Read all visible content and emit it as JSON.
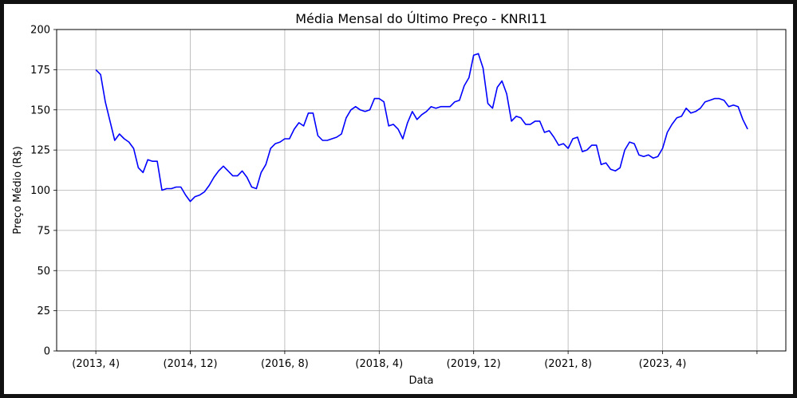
{
  "chart_data": {
    "type": "line",
    "title": "Média Mensal do Último Preço - KNRI11",
    "xlabel": "Data",
    "ylabel": "Preço Médio (R$)",
    "ylim": [
      0,
      200
    ],
    "yticks": [
      0,
      25,
      50,
      75,
      100,
      125,
      150,
      175,
      200
    ],
    "xticks": [
      "(2013, 4)",
      "(2014, 12)",
      "(2016, 8)",
      "(2018, 4)",
      "(2019, 12)",
      "(2021, 8)",
      "(2023, 4)",
      ""
    ],
    "grid": true,
    "line_color": "#0000ff",
    "x_start": "2013-04",
    "series": [
      {
        "values": [
          175,
          172,
          155,
          143,
          131,
          135,
          132,
          130,
          126,
          114,
          111,
          119,
          118,
          118,
          100,
          101,
          101,
          102,
          102,
          97,
          93,
          96,
          97,
          99,
          103,
          108,
          112,
          115,
          112,
          109,
          109,
          112,
          108,
          102,
          101,
          111,
          116,
          126,
          129,
          130,
          132,
          132,
          138,
          142,
          140,
          148,
          148,
          134,
          131,
          131,
          132,
          133,
          135,
          145,
          150,
          152,
          150,
          149,
          150,
          157,
          157,
          155,
          140,
          141,
          138,
          132,
          142,
          149,
          144,
          147,
          149,
          152,
          151,
          152,
          152,
          152,
          155,
          156,
          165,
          170,
          184,
          185,
          176,
          154,
          151,
          164,
          168,
          160,
          143,
          146,
          145,
          141,
          141,
          143,
          143,
          136,
          137,
          133,
          128,
          129,
          126,
          132,
          133,
          124,
          125,
          128,
          128,
          116,
          117,
          113,
          112,
          114,
          125,
          130,
          129,
          122,
          121,
          122,
          120,
          121,
          126,
          136,
          141,
          145,
          146,
          151,
          148,
          149,
          151,
          155,
          156,
          157,
          157,
          156,
          152,
          153,
          152,
          144,
          138
        ]
      }
    ]
  }
}
